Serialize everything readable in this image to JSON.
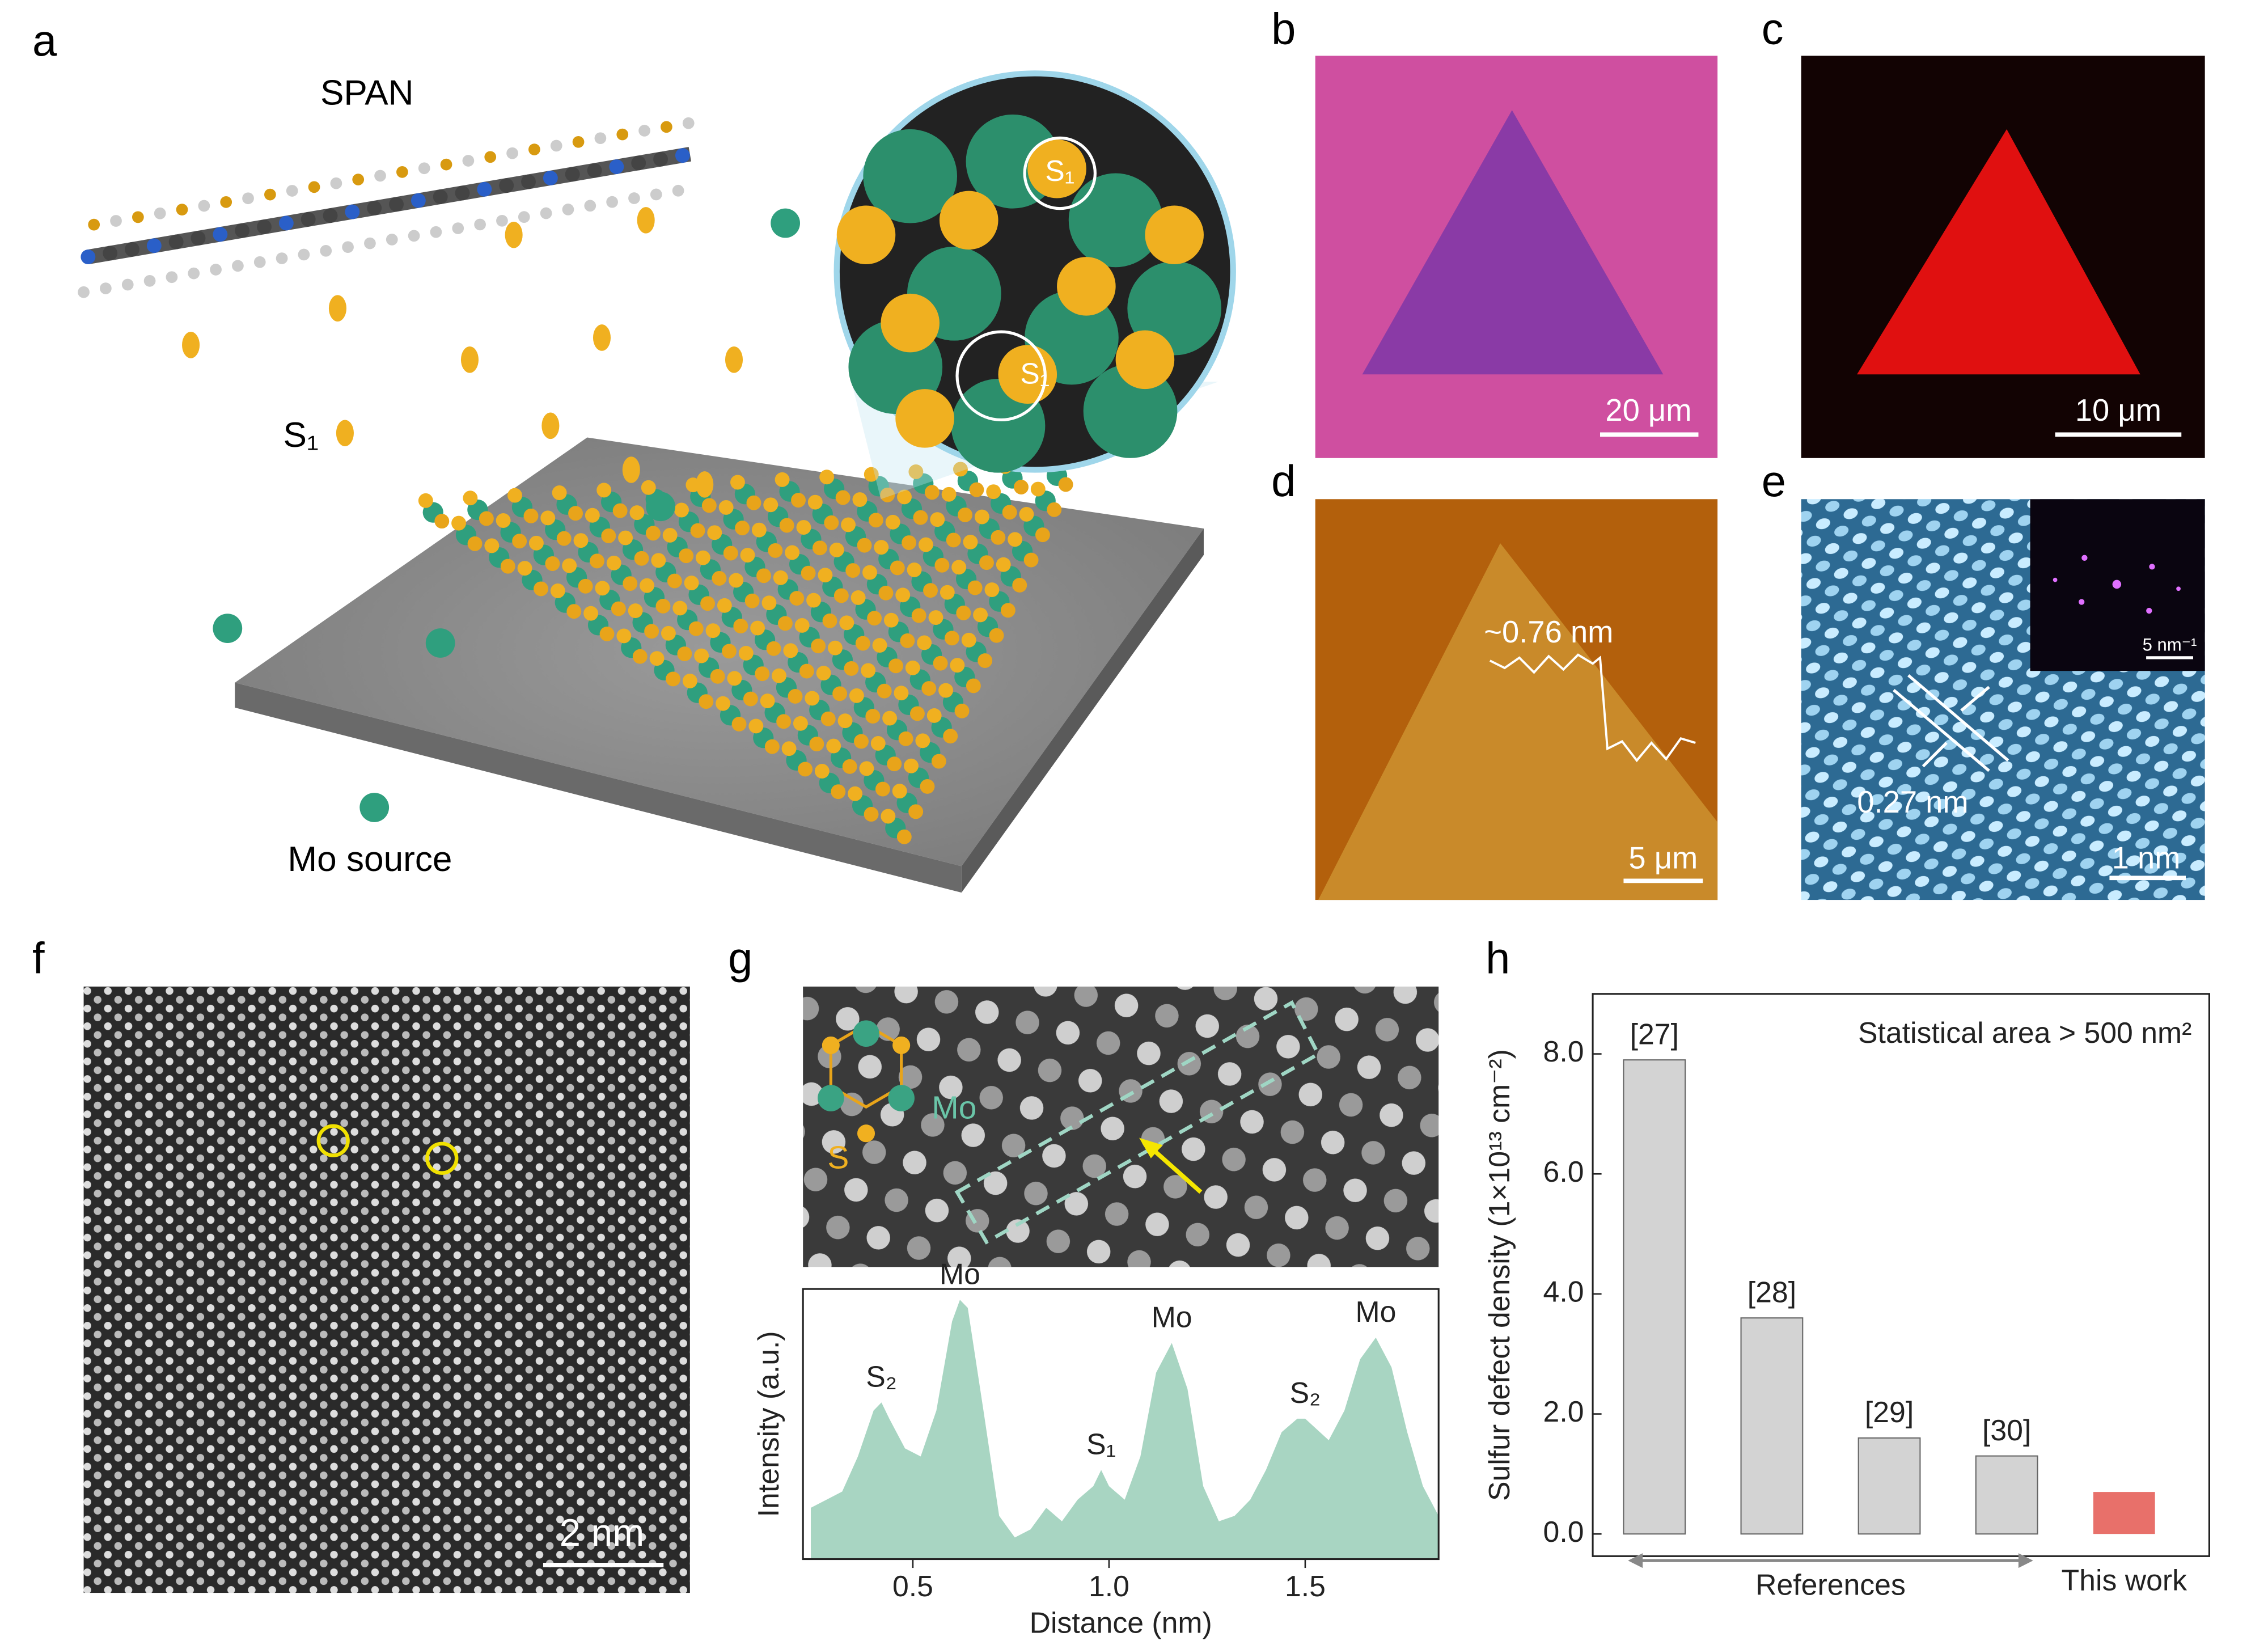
{
  "figure": {
    "panel_labels": [
      "a",
      "b",
      "c",
      "d",
      "e",
      "f",
      "g",
      "h"
    ],
    "a": {
      "chain_label": "SPAN",
      "atom_label": "S₁",
      "source_label": "Mo source",
      "zoom_labels": [
        "S₁",
        "S₁"
      ]
    },
    "b": {
      "scale_bar": "20 μm"
    },
    "c": {
      "scale_bar": "10 μm"
    },
    "d": {
      "scale_bar": "5 μm",
      "step_height": "~0.76 nm"
    },
    "e": {
      "scale_bar": "1 nm",
      "inset_scale_bar": "5 nm⁻¹",
      "spacing": "0.27 nm"
    },
    "f": {
      "scale_bar": "2 nm"
    },
    "g": {
      "inset_labels": [
        "Mo",
        "S"
      ]
    }
  },
  "chart_data": [
    {
      "type": "area",
      "xlabel": "Distance (nm)",
      "ylabel": "Intensity (a.u.)",
      "color": "#a8d5c2",
      "x": [
        0.24,
        0.28,
        0.32,
        0.36,
        0.4,
        0.42,
        0.44,
        0.48,
        0.52,
        0.56,
        0.6,
        0.62,
        0.64,
        0.68,
        0.72,
        0.76,
        0.8,
        0.84,
        0.88,
        0.92,
        0.96,
        0.98,
        1.0,
        1.04,
        1.08,
        1.12,
        1.16,
        1.2,
        1.24,
        1.28,
        1.32,
        1.36,
        1.4,
        1.44,
        1.48,
        1.5,
        1.56,
        1.6,
        1.64,
        1.68,
        1.72,
        1.76,
        1.8,
        1.84
      ],
      "values": [
        0.19,
        0.22,
        0.25,
        0.38,
        0.55,
        0.58,
        0.52,
        0.41,
        0.38,
        0.55,
        0.88,
        0.96,
        0.93,
        0.55,
        0.16,
        0.08,
        0.11,
        0.19,
        0.14,
        0.22,
        0.27,
        0.33,
        0.27,
        0.22,
        0.38,
        0.69,
        0.8,
        0.63,
        0.27,
        0.14,
        0.16,
        0.22,
        0.33,
        0.47,
        0.52,
        0.52,
        0.44,
        0.55,
        0.74,
        0.82,
        0.71,
        0.47,
        0.27,
        0.16
      ],
      "xlim": [
        0.22,
        1.84
      ],
      "ylim": [
        0,
        1
      ],
      "xticks": [
        0.5,
        {
          "value": 1,
          "label": "1.0"
        },
        1.5
      ],
      "annotations": [
        {
          "text": "S₂",
          "x": 0.42
        },
        {
          "text": "Mo",
          "x": 0.62
        },
        {
          "text": "S₁",
          "x": 0.98
        },
        {
          "text": "Mo",
          "x": 1.16
        },
        {
          "text": "S₂",
          "x": 1.5
        },
        {
          "text": "Mo",
          "x": 1.68
        }
      ]
    },
    {
      "type": "bar",
      "ylabel": "Sulfur defect density (1×10¹³ cm⁻²)",
      "annotation": "Statistical area > 500 nm²",
      "categories": [
        "[27]",
        "[28]",
        "[29]",
        "[30]",
        "This work"
      ],
      "values": [
        7.9,
        3.6,
        1.6,
        1.3,
        0.7
      ],
      "colors": [
        "#d3d3d3",
        "#d3d3d3",
        "#d3d3d3",
        "#d3d3d3",
        "#e8706a"
      ],
      "label_position": [
        "above",
        "above",
        "above",
        "above",
        "below"
      ],
      "groups": [
        {
          "label": "References",
          "from": 0,
          "to": 3
        }
      ],
      "ylim": [
        -0.37,
        9.0
      ],
      "yticks": [
        {
          "value": 0,
          "label": "0.0"
        },
        {
          "value": 2,
          "label": "2.0"
        },
        {
          "value": 4,
          "label": "4.0"
        },
        {
          "value": 6,
          "label": "6.0"
        },
        {
          "value": 8,
          "label": "8.0"
        }
      ]
    }
  ]
}
